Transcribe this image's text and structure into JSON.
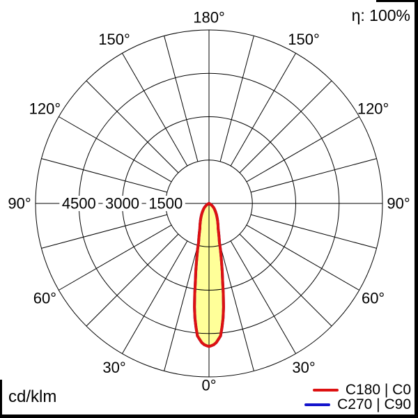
{
  "labels": {
    "efficiency": "η: 100%",
    "unit": "cd/klm"
  },
  "legend": {
    "position": "bottom-right",
    "items": [
      {
        "label": "C180 | C0",
        "color": "#dd1111"
      },
      {
        "label": "C270 | C90",
        "color": "#1414cc"
      }
    ]
  },
  "chart_data": {
    "type": "polar",
    "unit": "cd/klm",
    "efficiency_percent": 100,
    "rmax": 6000,
    "ring_values": [
      1500,
      3000,
      4500,
      6000
    ],
    "ring_labels": [
      {
        "value": 4500,
        "label": "4500"
      },
      {
        "value": 3000,
        "label": "3000"
      },
      {
        "value": 1500,
        "label": "1500"
      }
    ],
    "angle_step_deg": 15,
    "angle_labels": [
      {
        "gamma": 0,
        "label": "0°"
      },
      {
        "gamma": 30,
        "label": "30°"
      },
      {
        "gamma": 60,
        "label": "60°"
      },
      {
        "gamma": 90,
        "label": "90°"
      },
      {
        "gamma": 120,
        "label": "120°"
      },
      {
        "gamma": 150,
        "label": "150°"
      },
      {
        "gamma": 180,
        "label": "180°"
      }
    ],
    "grid_color": "#000000",
    "series": [
      {
        "name": "C180 | C0",
        "color": "#dd1111",
        "fill": "#ffff99",
        "symmetric": true,
        "gamma_deg": [
          0,
          2.5,
          5,
          7.5,
          10,
          12.5,
          15,
          17.5,
          20,
          25,
          30,
          35,
          40,
          45,
          50,
          55,
          60,
          65,
          70,
          75,
          80,
          85,
          90
        ],
        "values_cd_per_klm": [
          4950,
          4870,
          4600,
          3850,
          2700,
          1950,
          1400,
          1120,
          920,
          710,
          555,
          430,
          330,
          255,
          185,
          115,
          60,
          30,
          15,
          7,
          3,
          1,
          0
        ]
      },
      {
        "name": "C270 | C90",
        "color": "#1414cc",
        "fill": null,
        "symmetric": true,
        "gamma_deg": [
          0,
          2.5,
          5,
          7.5,
          10,
          12.5,
          15,
          17.5,
          20,
          25,
          30,
          35,
          40,
          45,
          50,
          55,
          60,
          65,
          70,
          75,
          80,
          85,
          90
        ],
        "values_cd_per_klm": [
          4950,
          4870,
          4600,
          3850,
          2700,
          1950,
          1400,
          1120,
          920,
          710,
          555,
          430,
          330,
          255,
          185,
          115,
          60,
          30,
          15,
          7,
          3,
          1,
          0
        ]
      }
    ]
  }
}
